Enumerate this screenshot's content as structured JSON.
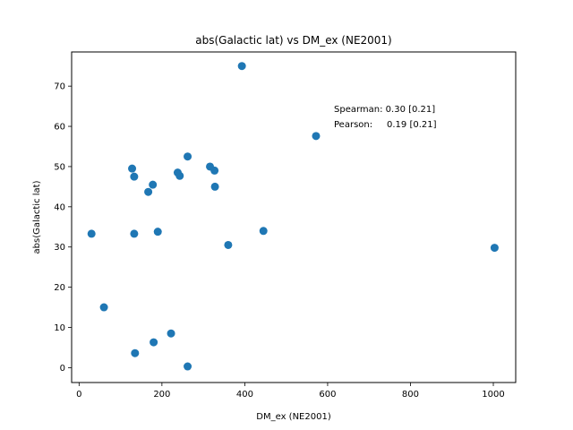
{
  "chart_data": {
    "type": "scatter",
    "title": "abs(Galactic lat) vs DM_ex (NE2001)",
    "xlabel": "DM_ex (NE2001)",
    "ylabel": "abs(Galactic lat)",
    "xlim": [
      -18,
      1054
    ],
    "ylim": [
      -3.7,
      78.5
    ],
    "xticks": [
      0,
      200,
      400,
      600,
      800,
      1000
    ],
    "yticks": [
      0,
      10,
      20,
      30,
      40,
      50,
      60,
      70
    ],
    "grid": false,
    "marker_color": "#1f77b4",
    "annotations": [
      "Spearman: 0.30 [0.21]",
      "Pearson:     0.19 [0.21]"
    ],
    "series": [
      {
        "x": [
          30,
          60,
          128,
          133,
          133,
          135,
          167,
          178,
          180,
          190,
          222,
          238,
          243,
          262,
          262,
          316,
          327,
          328,
          360,
          393,
          445,
          572,
          1003
        ],
        "y": [
          33.3,
          15.0,
          49.5,
          47.5,
          33.3,
          3.6,
          43.7,
          45.5,
          6.3,
          33.8,
          8.5,
          48.5,
          47.7,
          52.5,
          0.3,
          50.0,
          49.0,
          45.0,
          30.5,
          75.0,
          34.0,
          57.6,
          29.8
        ]
      }
    ]
  }
}
